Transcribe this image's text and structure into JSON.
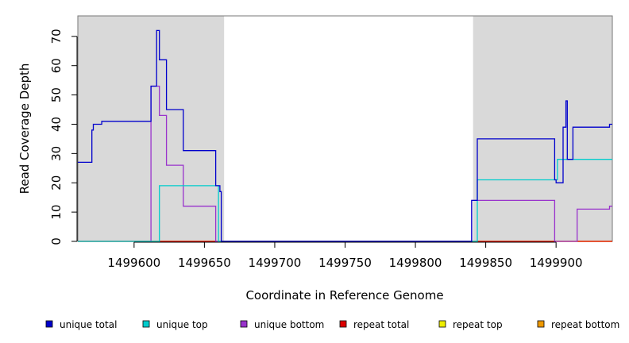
{
  "chart_data": {
    "type": "line",
    "title": "",
    "xlabel": "Coordinate in Reference Genome",
    "ylabel": "Read Coverage Depth",
    "xlim": [
      1499560,
      1499940
    ],
    "ylim": [
      0,
      77
    ],
    "xticks": [
      1499600,
      1499650,
      1499700,
      1499750,
      1499800,
      1499850,
      1499900
    ],
    "yticks": [
      0,
      10,
      20,
      30,
      40,
      50,
      60,
      70
    ],
    "shaded_regions": [
      [
        1499560,
        1499664
      ],
      [
        1499841,
        1499940
      ]
    ],
    "shade_color": "#d9d9d9",
    "grid": false,
    "legend_position": "bottom",
    "series": [
      {
        "name": "unique total",
        "color": "#0000cc",
        "step": true,
        "points": [
          [
            1499560,
            27
          ],
          [
            1499570,
            27
          ],
          [
            1499570,
            38
          ],
          [
            1499571,
            38
          ],
          [
            1499571,
            40
          ],
          [
            1499577,
            40
          ],
          [
            1499577,
            41
          ],
          [
            1499612,
            41
          ],
          [
            1499612,
            53
          ],
          [
            1499616,
            53
          ],
          [
            1499616,
            72
          ],
          [
            1499618,
            72
          ],
          [
            1499618,
            62
          ],
          [
            1499623,
            62
          ],
          [
            1499623,
            45
          ],
          [
            1499635,
            45
          ],
          [
            1499635,
            31
          ],
          [
            1499658,
            31
          ],
          [
            1499658,
            19
          ],
          [
            1499661,
            19
          ],
          [
            1499661,
            17
          ],
          [
            1499662,
            17
          ],
          [
            1499662,
            0
          ],
          [
            1499840,
            0
          ],
          [
            1499840,
            14
          ],
          [
            1499844,
            14
          ],
          [
            1499844,
            35
          ],
          [
            1499899,
            35
          ],
          [
            1499899,
            21
          ],
          [
            1499900,
            21
          ],
          [
            1499900,
            20
          ],
          [
            1499905,
            20
          ],
          [
            1499905,
            39
          ],
          [
            1499907,
            39
          ],
          [
            1499907,
            48
          ],
          [
            1499908,
            48
          ],
          [
            1499908,
            28
          ],
          [
            1499912,
            28
          ],
          [
            1499912,
            39
          ],
          [
            1499938,
            39
          ],
          [
            1499938,
            40
          ],
          [
            1499940,
            40
          ]
        ]
      },
      {
        "name": "unique top",
        "color": "#00cccc",
        "step": true,
        "points": [
          [
            1499560,
            0
          ],
          [
            1499618,
            0
          ],
          [
            1499618,
            19
          ],
          [
            1499660,
            19
          ],
          [
            1499660,
            0
          ],
          [
            1499844,
            0
          ],
          [
            1499844,
            21
          ],
          [
            1499901,
            21
          ],
          [
            1499901,
            28
          ],
          [
            1499940,
            28
          ]
        ]
      },
      {
        "name": "unique bottom",
        "color": "#9933cc",
        "step": true,
        "points": [
          [
            1499560,
            0
          ],
          [
            1499612,
            0
          ],
          [
            1499612,
            53
          ],
          [
            1499618,
            53
          ],
          [
            1499618,
            43
          ],
          [
            1499623,
            43
          ],
          [
            1499623,
            26
          ],
          [
            1499635,
            26
          ],
          [
            1499635,
            12
          ],
          [
            1499658,
            12
          ],
          [
            1499658,
            0
          ],
          [
            1499840,
            0
          ],
          [
            1499840,
            14
          ],
          [
            1499899,
            14
          ],
          [
            1499899,
            0
          ],
          [
            1499915,
            0
          ],
          [
            1499915,
            11
          ],
          [
            1499938,
            11
          ],
          [
            1499938,
            12
          ],
          [
            1499940,
            12
          ]
        ]
      },
      {
        "name": "repeat total",
        "color": "#dd0000",
        "step": true,
        "points": [
          [
            1499560,
            0
          ],
          [
            1499940,
            0
          ]
        ]
      },
      {
        "name": "repeat top",
        "color": "#eeee00",
        "step": true,
        "points": [
          [
            1499560,
            0
          ],
          [
            1499940,
            0
          ]
        ]
      },
      {
        "name": "repeat bottom",
        "color": "#ee9900",
        "step": true,
        "points": [
          [
            1499560,
            0
          ],
          [
            1499940,
            0
          ]
        ]
      }
    ]
  }
}
